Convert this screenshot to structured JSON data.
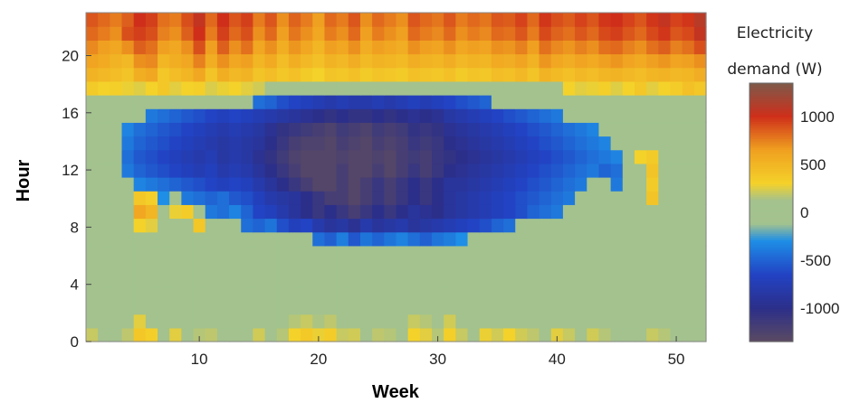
{
  "chart_data": {
    "type": "heatmap",
    "title": "",
    "xlabel": "Week",
    "ylabel": "Hour",
    "x_ticks": [
      10,
      20,
      30,
      40,
      50
    ],
    "y_ticks": [
      0,
      4,
      8,
      12,
      16,
      20
    ],
    "xlim": [
      0.5,
      52.5
    ],
    "ylim": [
      0,
      23
    ],
    "weeks": 52,
    "hours": 24,
    "colorbar": {
      "title_line1": "Electricity",
      "title_line2": "demand (W)",
      "ticks": [
        1000,
        500,
        0,
        -500,
        -1000
      ],
      "tick_labels": [
        "1000",
        "500",
        "0",
        "-500",
        "-1000"
      ],
      "range": [
        -1350,
        1350
      ]
    },
    "colormap": [
      {
        "v": -1350,
        "c": "#5b4a63"
      },
      {
        "v": -1000,
        "c": "#2c2f8a"
      },
      {
        "v": -650,
        "c": "#2243c4"
      },
      {
        "v": -300,
        "c": "#1e8ee6"
      },
      {
        "v": -120,
        "c": "#a3c28e"
      },
      {
        "v": 120,
        "c": "#a3c28e"
      },
      {
        "v": 300,
        "c": "#f4d22a"
      },
      {
        "v": 650,
        "c": "#f0a020"
      },
      {
        "v": 1000,
        "c": "#cf2f1a"
      },
      {
        "v": 1350,
        "c": "#7d5a4b"
      }
    ],
    "z_description": "Z[hour][week] in watts, row 0 = hour 0 (bottom)",
    "z": [
      [
        200,
        120,
        0,
        180,
        380,
        320,
        0,
        260,
        0,
        160,
        180,
        0,
        120,
        0,
        220,
        0,
        160,
        300,
        360,
        280,
        340,
        200,
        220,
        0,
        180,
        160,
        0,
        300,
        260,
        160,
        320,
        200,
        0,
        280,
        220,
        300,
        220,
        180,
        0,
        260,
        200,
        0,
        220,
        160,
        0,
        0,
        0,
        200,
        160,
        0,
        0,
        0
      ],
      [
        0,
        0,
        0,
        0,
        260,
        0,
        0,
        0,
        0,
        0,
        0,
        0,
        0,
        0,
        0,
        0,
        0,
        160,
        200,
        140,
        180,
        0,
        0,
        0,
        0,
        0,
        0,
        200,
        160,
        0,
        220,
        0,
        0,
        0,
        0,
        0,
        0,
        0,
        0,
        0,
        0,
        0,
        0,
        0,
        0,
        0,
        0,
        0,
        0,
        0,
        0,
        0
      ],
      [
        0,
        0,
        0,
        0,
        0,
        0,
        0,
        0,
        0,
        0,
        0,
        0,
        0,
        0,
        0,
        0,
        0,
        0,
        0,
        0,
        0,
        0,
        0,
        0,
        0,
        0,
        0,
        0,
        0,
        0,
        0,
        0,
        0,
        0,
        0,
        0,
        0,
        0,
        0,
        0,
        0,
        0,
        0,
        0,
        0,
        0,
        0,
        0,
        0,
        0,
        0,
        0
      ],
      [
        0,
        0,
        0,
        0,
        0,
        0,
        0,
        0,
        0,
        0,
        0,
        0,
        0,
        0,
        0,
        0,
        0,
        0,
        0,
        0,
        0,
        0,
        0,
        0,
        0,
        0,
        0,
        0,
        0,
        0,
        0,
        0,
        0,
        0,
        0,
        0,
        0,
        0,
        0,
        0,
        0,
        0,
        0,
        0,
        0,
        0,
        0,
        0,
        0,
        0,
        0,
        0
      ],
      [
        0,
        0,
        0,
        0,
        0,
        0,
        0,
        0,
        0,
        0,
        0,
        0,
        0,
        0,
        0,
        0,
        0,
        0,
        0,
        0,
        0,
        0,
        0,
        0,
        0,
        0,
        0,
        0,
        0,
        0,
        0,
        0,
        0,
        0,
        0,
        0,
        0,
        0,
        0,
        0,
        0,
        0,
        0,
        0,
        0,
        0,
        0,
        0,
        0,
        0,
        0,
        0
      ],
      [
        0,
        0,
        0,
        0,
        0,
        0,
        0,
        0,
        0,
        0,
        0,
        0,
        0,
        0,
        0,
        0,
        0,
        0,
        0,
        0,
        0,
        0,
        0,
        0,
        0,
        0,
        0,
        0,
        0,
        0,
        0,
        0,
        0,
        0,
        0,
        0,
        0,
        0,
        0,
        0,
        0,
        0,
        0,
        0,
        0,
        0,
        0,
        0,
        0,
        0,
        0,
        0
      ],
      [
        0,
        0,
        0,
        0,
        0,
        0,
        0,
        0,
        0,
        0,
        0,
        0,
        0,
        0,
        0,
        0,
        0,
        0,
        0,
        0,
        0,
        0,
        0,
        0,
        0,
        0,
        0,
        0,
        0,
        0,
        0,
        0,
        0,
        0,
        0,
        0,
        0,
        0,
        0,
        0,
        0,
        0,
        0,
        0,
        0,
        0,
        0,
        0,
        0,
        0,
        0,
        0
      ],
      [
        0,
        0,
        0,
        0,
        0,
        0,
        0,
        0,
        0,
        0,
        0,
        0,
        0,
        0,
        0,
        0,
        0,
        0,
        0,
        -450,
        -520,
        -380,
        -560,
        -420,
        -500,
        -420,
        -360,
        -450,
        -520,
        -420,
        -380,
        -300,
        0,
        0,
        0,
        0,
        0,
        0,
        0,
        0,
        0,
        0,
        0,
        0,
        0,
        0,
        0,
        0,
        0,
        0,
        0,
        0
      ],
      [
        0,
        0,
        0,
        0,
        300,
        260,
        0,
        0,
        0,
        380,
        0,
        0,
        0,
        -450,
        -500,
        -420,
        -600,
        -700,
        -650,
        -800,
        -900,
        -850,
        -950,
        -800,
        -900,
        -850,
        -800,
        -900,
        -850,
        -800,
        -750,
        -700,
        -650,
        -600,
        -500,
        -450,
        0,
        0,
        0,
        0,
        0,
        0,
        0,
        0,
        0,
        0,
        0,
        0,
        0,
        0,
        0,
        0
      ],
      [
        0,
        0,
        0,
        0,
        600,
        500,
        0,
        280,
        340,
        0,
        -400,
        -450,
        -350,
        -500,
        -650,
        -700,
        -800,
        -900,
        -1000,
        -1100,
        -1000,
        -1100,
        -1200,
        -1100,
        -1000,
        -1100,
        -1000,
        -900,
        -950,
        -1000,
        -900,
        -850,
        -800,
        -750,
        -700,
        -650,
        -600,
        -500,
        -450,
        -400,
        0,
        0,
        0,
        0,
        0,
        0,
        0,
        0,
        0,
        0,
        0,
        0
      ],
      [
        0,
        0,
        0,
        0,
        380,
        320,
        -300,
        0,
        -400,
        -450,
        -500,
        -450,
        -550,
        -600,
        -700,
        -800,
        -850,
        -900,
        -1000,
        -1100,
        -1200,
        -1200,
        -1300,
        -1200,
        -1100,
        -1200,
        -1100,
        -1000,
        -1100,
        -1000,
        -900,
        -850,
        -800,
        -750,
        -700,
        -650,
        -600,
        -550,
        -500,
        -450,
        -400,
        0,
        0,
        0,
        0,
        0,
        0,
        400,
        0,
        0,
        0,
        0
      ],
      [
        0,
        0,
        0,
        0,
        -350,
        -400,
        -450,
        -500,
        -550,
        -600,
        -650,
        -700,
        -650,
        -700,
        -800,
        -900,
        -1000,
        -1100,
        -1200,
        -1300,
        -1300,
        -1200,
        -1300,
        -1200,
        -1100,
        -1200,
        -1100,
        -1000,
        -1100,
        -1000,
        -900,
        -900,
        -850,
        -800,
        -750,
        -700,
        -650,
        -600,
        -550,
        -500,
        -450,
        -400,
        0,
        0,
        -400,
        0,
        0,
        350,
        0,
        0,
        0,
        0
      ],
      [
        0,
        0,
        0,
        -400,
        -500,
        -550,
        -600,
        -650,
        -700,
        -750,
        -700,
        -800,
        -750,
        -800,
        -900,
        -1000,
        -1100,
        -1200,
        -1300,
        -1300,
        -1300,
        -1200,
        -1300,
        -1300,
        -1200,
        -1300,
        -1200,
        -1100,
        -1200,
        -1100,
        -1000,
        -950,
        -900,
        -850,
        -800,
        -750,
        -700,
        -650,
        -600,
        -550,
        -500,
        -450,
        -400,
        -500,
        -450,
        0,
        0,
        400,
        0,
        0,
        0,
        0
      ],
      [
        0,
        0,
        0,
        -450,
        -550,
        -600,
        -650,
        -700,
        -750,
        -800,
        -750,
        -850,
        -800,
        -850,
        -950,
        -1050,
        -1150,
        -1250,
        -1300,
        -1300,
        -1300,
        -1250,
        -1300,
        -1300,
        -1250,
        -1300,
        -1200,
        -1150,
        -1200,
        -1100,
        -1050,
        -1000,
        -950,
        -900,
        -850,
        -800,
        -750,
        -700,
        -650,
        -600,
        -550,
        -500,
        -450,
        -400,
        -350,
        0,
        300,
        350,
        0,
        0,
        0,
        0
      ],
      [
        0,
        0,
        0,
        -400,
        -500,
        -550,
        -600,
        -650,
        -700,
        -750,
        -800,
        -850,
        -800,
        -850,
        -900,
        -1000,
        -1100,
        -1200,
        -1250,
        -1250,
        -1300,
        -1200,
        -1250,
        -1300,
        -1200,
        -1250,
        -1200,
        -1100,
        -1150,
        -1100,
        -1000,
        -950,
        -900,
        -850,
        -800,
        -750,
        -700,
        -650,
        -600,
        -550,
        -500,
        -450,
        -400,
        -350,
        0,
        0,
        0,
        0,
        0,
        0,
        0,
        0
      ],
      [
        0,
        0,
        0,
        -350,
        -450,
        -500,
        -550,
        -600,
        -650,
        -700,
        -750,
        -800,
        -750,
        -800,
        -850,
        -950,
        -1050,
        -1100,
        -1150,
        -1200,
        -1250,
        -1150,
        -1200,
        -1250,
        -1150,
        -1200,
        -1150,
        -1050,
        -1100,
        -1050,
        -950,
        -900,
        -850,
        -800,
        -750,
        -700,
        -650,
        -600,
        -550,
        -500,
        -450,
        -400,
        -350,
        0,
        0,
        0,
        0,
        0,
        0,
        0,
        0,
        0
      ],
      [
        0,
        0,
        0,
        0,
        0,
        -400,
        -450,
        -500,
        -550,
        -600,
        -650,
        -700,
        -650,
        -700,
        -750,
        -800,
        -850,
        -900,
        -950,
        -1000,
        -1050,
        -1000,
        -1050,
        -1050,
        -1000,
        -1050,
        -1000,
        -950,
        -1000,
        -950,
        -850,
        -800,
        -750,
        -700,
        -650,
        -600,
        -550,
        -500,
        -450,
        -400,
        0,
        0,
        0,
        0,
        0,
        0,
        0,
        0,
        0,
        0,
        0,
        0
      ],
      [
        0,
        0,
        0,
        0,
        0,
        0,
        0,
        0,
        0,
        0,
        0,
        0,
        0,
        0,
        -450,
        -500,
        -600,
        -650,
        -700,
        -750,
        -800,
        -750,
        -800,
        -800,
        -750,
        -800,
        -750,
        -700,
        -750,
        -700,
        -650,
        -600,
        -550,
        -500,
        0,
        0,
        0,
        0,
        0,
        0,
        0,
        0,
        0,
        0,
        0,
        0,
        0,
        0,
        0,
        0,
        0,
        0
      ],
      [
        350,
        300,
        320,
        280,
        250,
        300,
        380,
        260,
        300,
        320,
        240,
        280,
        300,
        260,
        220,
        0,
        0,
        0,
        0,
        0,
        0,
        0,
        0,
        0,
        0,
        0,
        0,
        0,
        0,
        0,
        0,
        0,
        0,
        0,
        0,
        0,
        0,
        0,
        0,
        0,
        300,
        260,
        280,
        320,
        250,
        300,
        380,
        260,
        300,
        340,
        420,
        380
      ],
      [
        520,
        480,
        450,
        400,
        550,
        600,
        380,
        450,
        500,
        600,
        400,
        550,
        480,
        520,
        400,
        450,
        380,
        420,
        350,
        300,
        400,
        380,
        420,
        350,
        400,
        380,
        350,
        420,
        400,
        380,
        420,
        350,
        400,
        380,
        450,
        420,
        480,
        400,
        520,
        460,
        420,
        480,
        450,
        500,
        520,
        480,
        450,
        500,
        520,
        480,
        500,
        560
      ],
      [
        620,
        580,
        520,
        480,
        700,
        720,
        500,
        550,
        600,
        750,
        550,
        700,
        600,
        650,
        500,
        580,
        450,
        550,
        480,
        420,
        520,
        480,
        560,
        460,
        520,
        500,
        460,
        560,
        520,
        500,
        560,
        480,
        520,
        500,
        580,
        560,
        620,
        520,
        680,
        600,
        560,
        620,
        580,
        650,
        680,
        620,
        580,
        650,
        680,
        620,
        650,
        700
      ],
      [
        720,
        650,
        600,
        700,
        850,
        800,
        650,
        600,
        700,
        900,
        650,
        850,
        700,
        800,
        600,
        700,
        550,
        680,
        600,
        500,
        650,
        600,
        700,
        560,
        650,
        600,
        560,
        700,
        650,
        620,
        700,
        600,
        650,
        620,
        700,
        680,
        750,
        650,
        800,
        720,
        680,
        750,
        700,
        800,
        820,
        750,
        700,
        800,
        850,
        750,
        800,
        900
      ],
      [
        820,
        760,
        700,
        900,
        950,
        900,
        750,
        700,
        850,
        1000,
        760,
        950,
        820,
        900,
        700,
        820,
        650,
        780,
        700,
        600,
        760,
        700,
        820,
        650,
        760,
        700,
        650,
        820,
        760,
        720,
        820,
        700,
        760,
        720,
        820,
        800,
        880,
        760,
        920,
        840,
        800,
        880,
        820,
        920,
        950,
        880,
        820,
        920,
        980,
        880,
        920,
        1050
      ],
      [
        880,
        820,
        760,
        850,
        1000,
        950,
        800,
        760,
        900,
        1050,
        820,
        1000,
        880,
        950,
        760,
        880,
        700,
        840,
        760,
        650,
        820,
        760,
        880,
        700,
        820,
        760,
        700,
        880,
        820,
        780,
        880,
        760,
        820,
        780,
        880,
        860,
        940,
        820,
        980,
        900,
        860,
        940,
        880,
        980,
        1000,
        940,
        880,
        980,
        1050,
        940,
        980,
        1100
      ]
    ]
  }
}
